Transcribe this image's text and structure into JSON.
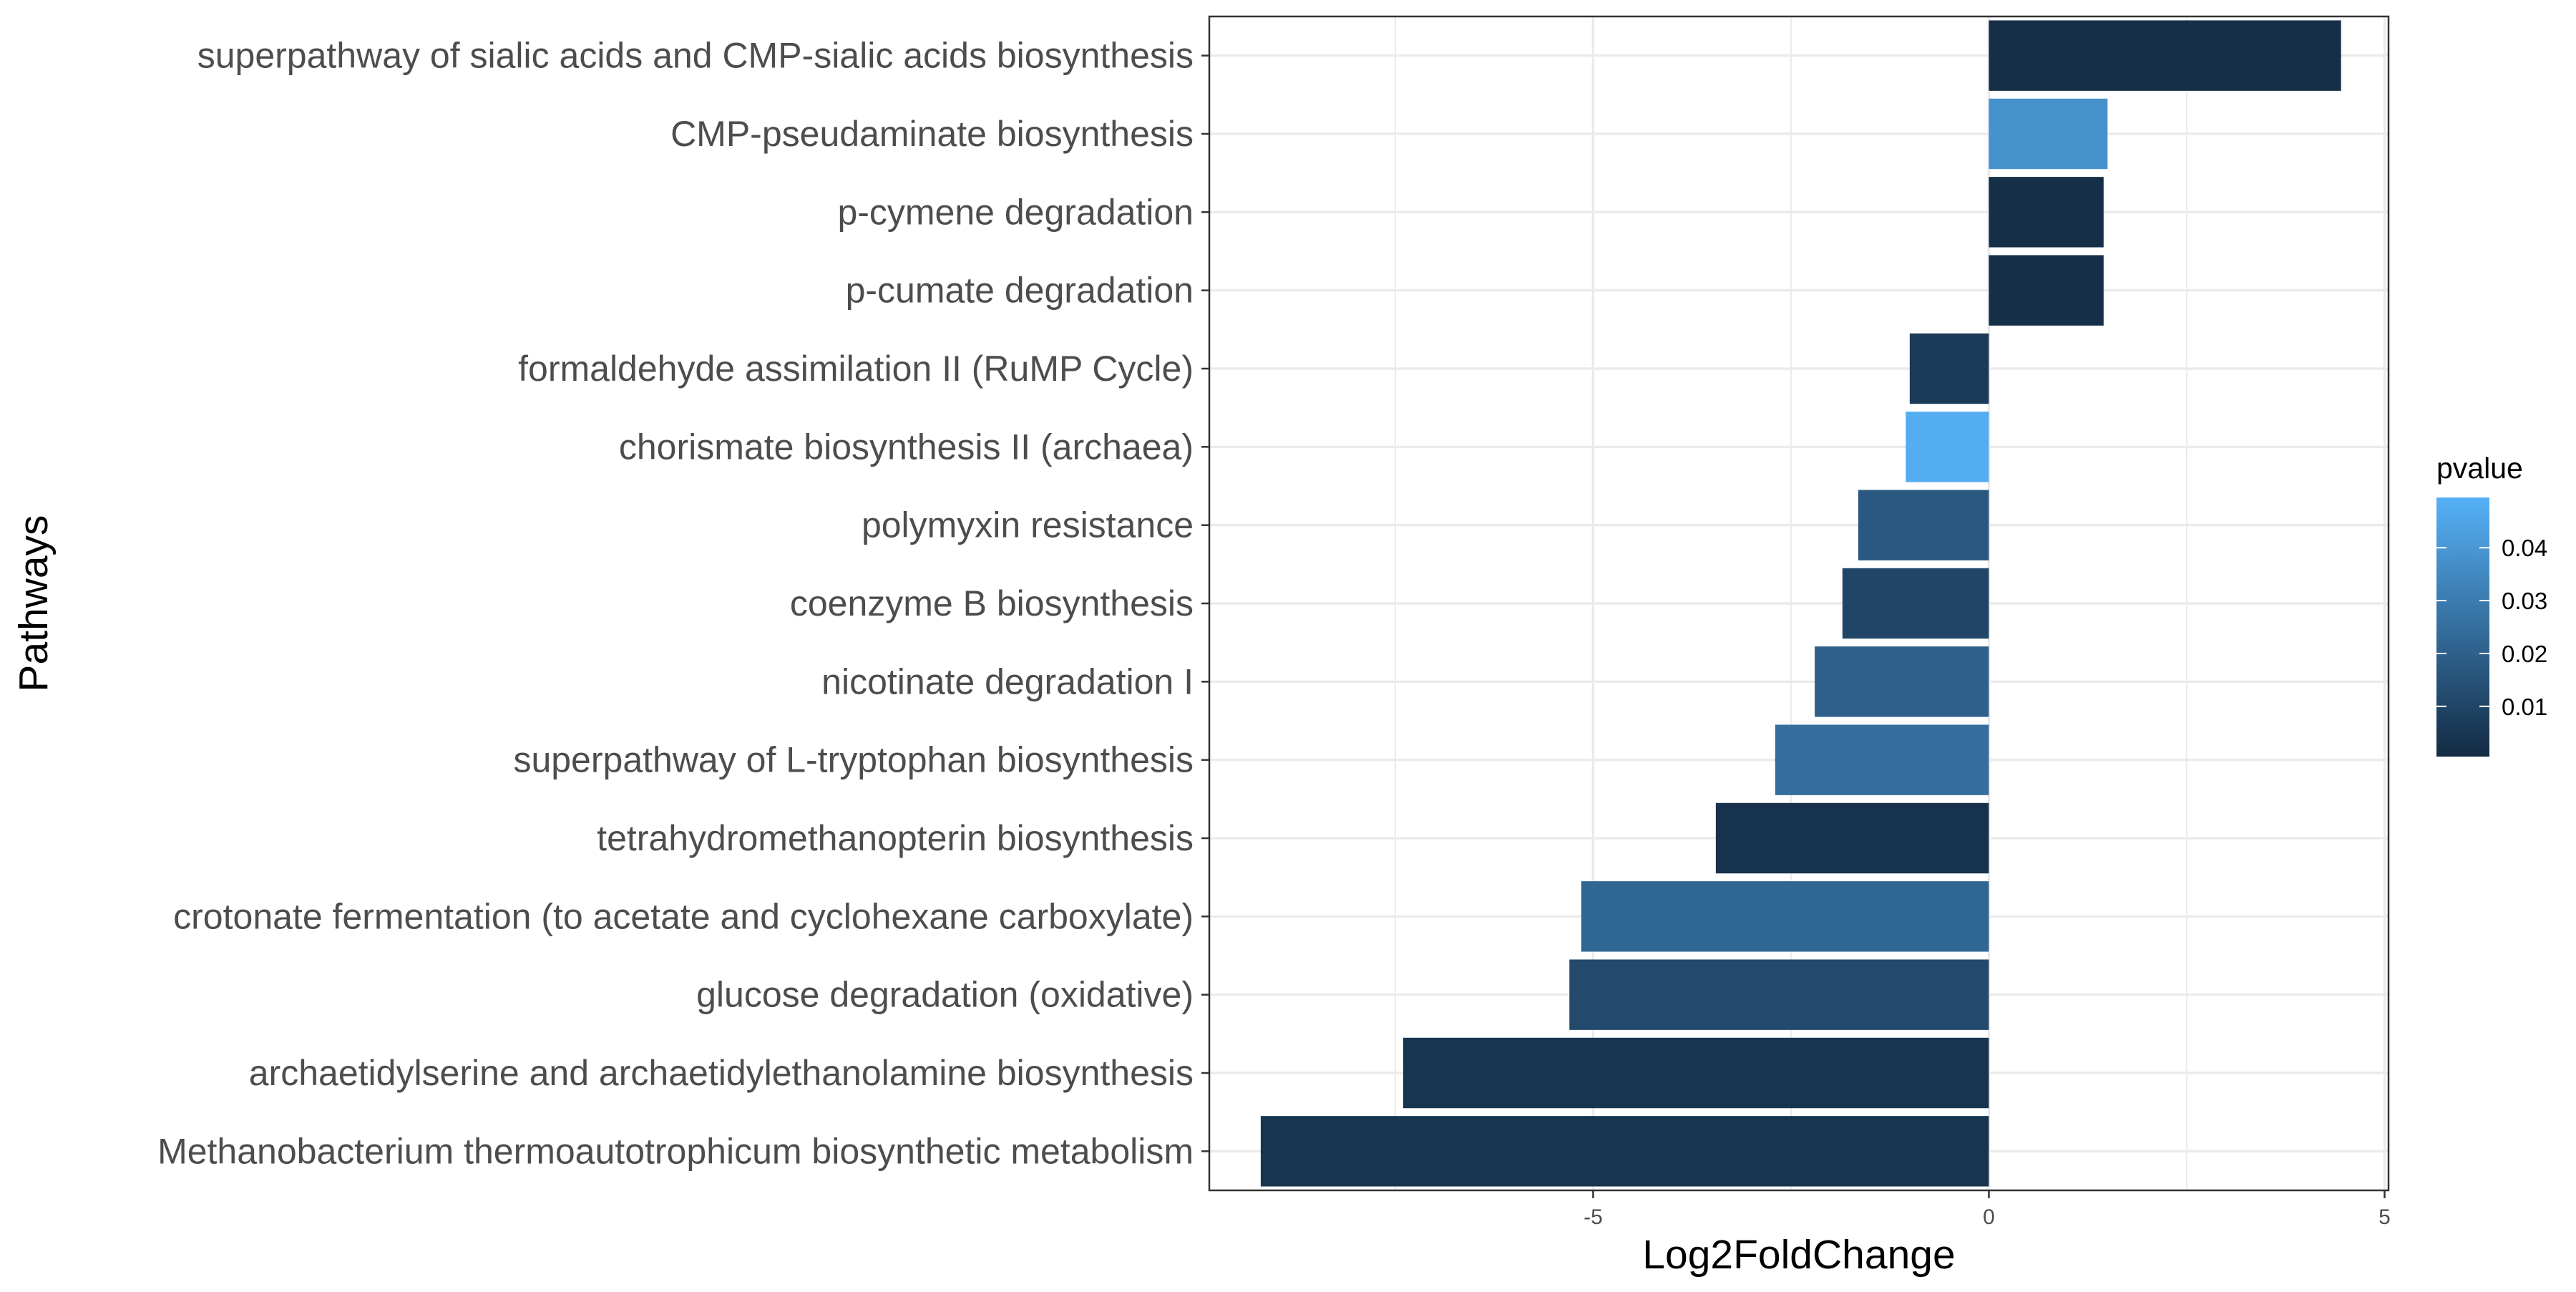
{
  "chart_data": {
    "type": "bar",
    "orientation": "horizontal",
    "xlabel": "Log2FoldChange",
    "ylabel": "Pathways",
    "xlim": [
      -9.85,
      5.05
    ],
    "xticks": [
      -5,
      0,
      5
    ],
    "xtick_labels": [
      "-5",
      "0",
      "5"
    ],
    "grid": true,
    "legend_placement": "right",
    "colorbar": {
      "title": "pvalue",
      "min": 0.0005,
      "max": 0.0495,
      "ticks": [
        0.01,
        0.02,
        0.03,
        0.04
      ],
      "tick_labels": [
        "0.01",
        "0.02",
        "0.03",
        "0.04"
      ],
      "low_color": "#132B43",
      "high_color": "#56B1F7"
    },
    "categories": [
      "superpathway of sialic acids and CMP-sialic acids biosynthesis",
      "CMP-pseudaminate biosynthesis",
      "p-cymene degradation",
      "p-cumate degradation",
      "formaldehyde assimilation II (RuMP Cycle)",
      "chorismate biosynthesis II (archaea)",
      "polymyxin resistance",
      "coenzyme B biosynthesis",
      "nicotinate degradation I",
      "superpathway of L-tryptophan biosynthesis",
      "tetrahydromethanopterin biosynthesis",
      "crotonate fermentation (to acetate and cyclohexane carboxylate)",
      "glucose degradation (oxidative)",
      "archaetidylserine and archaetidylethanolamine biosynthesis",
      "Methanobacterium thermoautotrophicum biosynthetic metabolism"
    ],
    "values": [
      4.45,
      1.5,
      1.45,
      1.45,
      -1.0,
      -1.05,
      -1.65,
      -1.85,
      -2.2,
      -2.7,
      -3.45,
      -5.15,
      -5.3,
      -7.4,
      -9.2
    ],
    "pvalues": [
      0.002,
      0.038,
      0.002,
      0.002,
      0.006,
      0.048,
      0.017,
      0.01,
      0.02,
      0.025,
      0.003,
      0.022,
      0.012,
      0.004,
      0.004
    ]
  }
}
